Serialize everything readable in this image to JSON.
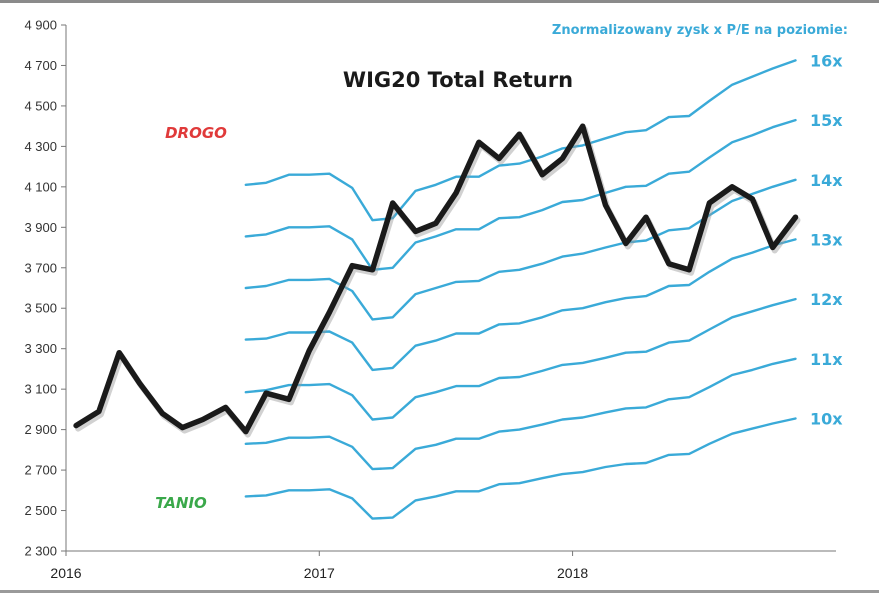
{
  "chart_data": {
    "type": "line",
    "title": "WIG20 Total Return",
    "subtitle": "Znormalizowany zysk x P/E na poziomie:",
    "x_tick_labels": [
      "2016",
      "2017",
      "2018"
    ],
    "y_tick_labels": [
      "2 300",
      "2 500",
      "2 700",
      "2 900",
      "3 100",
      "3 300",
      "3 500",
      "3 700",
      "3 900",
      "4 100",
      "4 300",
      "4 500",
      "4 700",
      "4 900"
    ],
    "ylim": [
      2300,
      4900
    ],
    "xlim": [
      2016.0,
      2019.04
    ],
    "grid": false,
    "annotations": [
      {
        "text": "DROGO",
        "color": "#e03a3a"
      },
      {
        "text": "TANIO",
        "color": "#3aa84a"
      }
    ],
    "colors": {
      "main": "#1a1a1a",
      "bands": "#3aaad8"
    },
    "series_main": {
      "name": "WIG20 Total Return",
      "x": [
        2016.04,
        2016.13,
        2016.21,
        2016.29,
        2016.38,
        2016.46,
        2016.54,
        2016.63,
        2016.71,
        2016.79,
        2016.88,
        2016.96,
        2017.04,
        2017.13,
        2017.21,
        2017.29,
        2017.38,
        2017.46,
        2017.54,
        2017.63,
        2017.71,
        2017.79,
        2017.88,
        2017.96,
        2018.04,
        2018.13,
        2018.21,
        2018.29,
        2018.38,
        2018.46,
        2018.54,
        2018.63,
        2018.71,
        2018.79,
        2018.88
      ],
      "values": [
        2920,
        2990,
        3280,
        3130,
        2980,
        2910,
        2950,
        3010,
        2890,
        3080,
        3050,
        3290,
        3480,
        3710,
        3690,
        4020,
        3880,
        3920,
        4070,
        4320,
        4240,
        4360,
        4160,
        4240,
        4400,
        4010,
        3820,
        3950,
        3720,
        3690,
        4020,
        4100,
        4040,
        3800,
        3950
      ]
    },
    "bands_x": [
      2016.71,
      2016.79,
      2016.88,
      2016.96,
      2017.04,
      2017.13,
      2017.21,
      2017.29,
      2017.38,
      2017.46,
      2017.54,
      2017.63,
      2017.71,
      2017.79,
      2017.88,
      2017.96,
      2018.04,
      2018.13,
      2018.21,
      2018.29,
      2018.38,
      2018.46,
      2018.54,
      2018.63,
      2018.71,
      2018.79,
      2018.88
    ],
    "bands": [
      {
        "label": "10x",
        "values": [
          2570,
          2575,
          2600,
          2600,
          2605,
          2560,
          2460,
          2465,
          2550,
          2570,
          2595,
          2595,
          2630,
          2635,
          2660,
          2680,
          2690,
          2715,
          2730,
          2735,
          2775,
          2780,
          2830,
          2880,
          2905,
          2930,
          2955
        ]
      },
      {
        "label": "11x",
        "values": [
          2830,
          2835,
          2860,
          2860,
          2865,
          2815,
          2705,
          2710,
          2805,
          2825,
          2855,
          2855,
          2890,
          2900,
          2925,
          2950,
          2960,
          2985,
          3005,
          3010,
          3050,
          3060,
          3110,
          3170,
          3195,
          3225,
          3250
        ]
      },
      {
        "label": "12x",
        "values": [
          3085,
          3095,
          3120,
          3120,
          3125,
          3070,
          2950,
          2960,
          3060,
          3085,
          3115,
          3115,
          3155,
          3160,
          3190,
          3220,
          3230,
          3255,
          3280,
          3285,
          3330,
          3340,
          3395,
          3455,
          3485,
          3515,
          3545
        ]
      },
      {
        "label": "13x",
        "values": [
          3345,
          3350,
          3380,
          3380,
          3385,
          3330,
          3195,
          3205,
          3315,
          3340,
          3375,
          3375,
          3420,
          3425,
          3455,
          3490,
          3500,
          3530,
          3550,
          3560,
          3610,
          3615,
          3680,
          3745,
          3775,
          3810,
          3840
        ]
      },
      {
        "label": "14x",
        "values": [
          3600,
          3610,
          3640,
          3640,
          3645,
          3585,
          3445,
          3455,
          3570,
          3600,
          3630,
          3635,
          3680,
          3690,
          3720,
          3755,
          3770,
          3800,
          3825,
          3835,
          3885,
          3895,
          3960,
          4030,
          4065,
          4100,
          4135
        ]
      },
      {
        "label": "15x",
        "values": [
          3855,
          3865,
          3900,
          3900,
          3905,
          3840,
          3690,
          3700,
          3825,
          3855,
          3890,
          3890,
          3945,
          3950,
          3985,
          4025,
          4035,
          4070,
          4100,
          4105,
          4165,
          4175,
          4245,
          4320,
          4355,
          4395,
          4430
        ]
      },
      {
        "label": "16x",
        "values": [
          4110,
          4120,
          4160,
          4160,
          4165,
          4095,
          3935,
          3945,
          4080,
          4110,
          4150,
          4150,
          4205,
          4215,
          4250,
          4290,
          4305,
          4340,
          4370,
          4380,
          4445,
          4450,
          4525,
          4605,
          4645,
          4685,
          4725
        ]
      }
    ]
  }
}
